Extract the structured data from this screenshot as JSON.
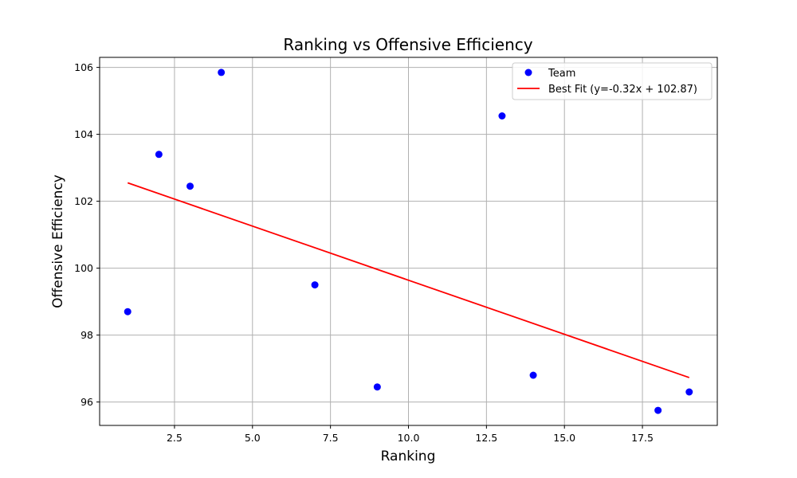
{
  "chart_data": {
    "type": "scatter",
    "title": "Ranking vs Offensive Efficiency",
    "xlabel": "Ranking",
    "ylabel": "Offensive Efficiency",
    "xlim": [
      0.1,
      19.9
    ],
    "ylim": [
      95.3,
      106.3
    ],
    "grid": true,
    "legend_position": "top-right",
    "x_ticks": [
      2.5,
      5.0,
      7.5,
      10.0,
      12.5,
      15.0,
      17.5
    ],
    "x_tick_labels": [
      "2.5",
      "5.0",
      "7.5",
      "10.0",
      "12.5",
      "15.0",
      "17.5"
    ],
    "y_ticks": [
      96,
      98,
      100,
      102,
      104,
      106
    ],
    "y_tick_labels": [
      "96",
      "98",
      "100",
      "102",
      "104",
      "106"
    ],
    "series": [
      {
        "name": "Team",
        "kind": "scatter",
        "color": "#0000ff",
        "points": [
          {
            "x": 1,
            "y": 98.7
          },
          {
            "x": 2,
            "y": 103.4
          },
          {
            "x": 3,
            "y": 102.45
          },
          {
            "x": 4,
            "y": 105.85
          },
          {
            "x": 7,
            "y": 99.5
          },
          {
            "x": 9,
            "y": 96.45
          },
          {
            "x": 13,
            "y": 104.55
          },
          {
            "x": 14,
            "y": 96.8
          },
          {
            "x": 18,
            "y": 95.75
          },
          {
            "x": 19,
            "y": 96.3
          }
        ]
      },
      {
        "name": "Best Fit (y=-0.32x + 102.87)",
        "kind": "line",
        "color": "#ff0000",
        "points": [
          {
            "x": 1,
            "y": 102.55
          },
          {
            "x": 19,
            "y": 96.73
          }
        ]
      }
    ]
  }
}
